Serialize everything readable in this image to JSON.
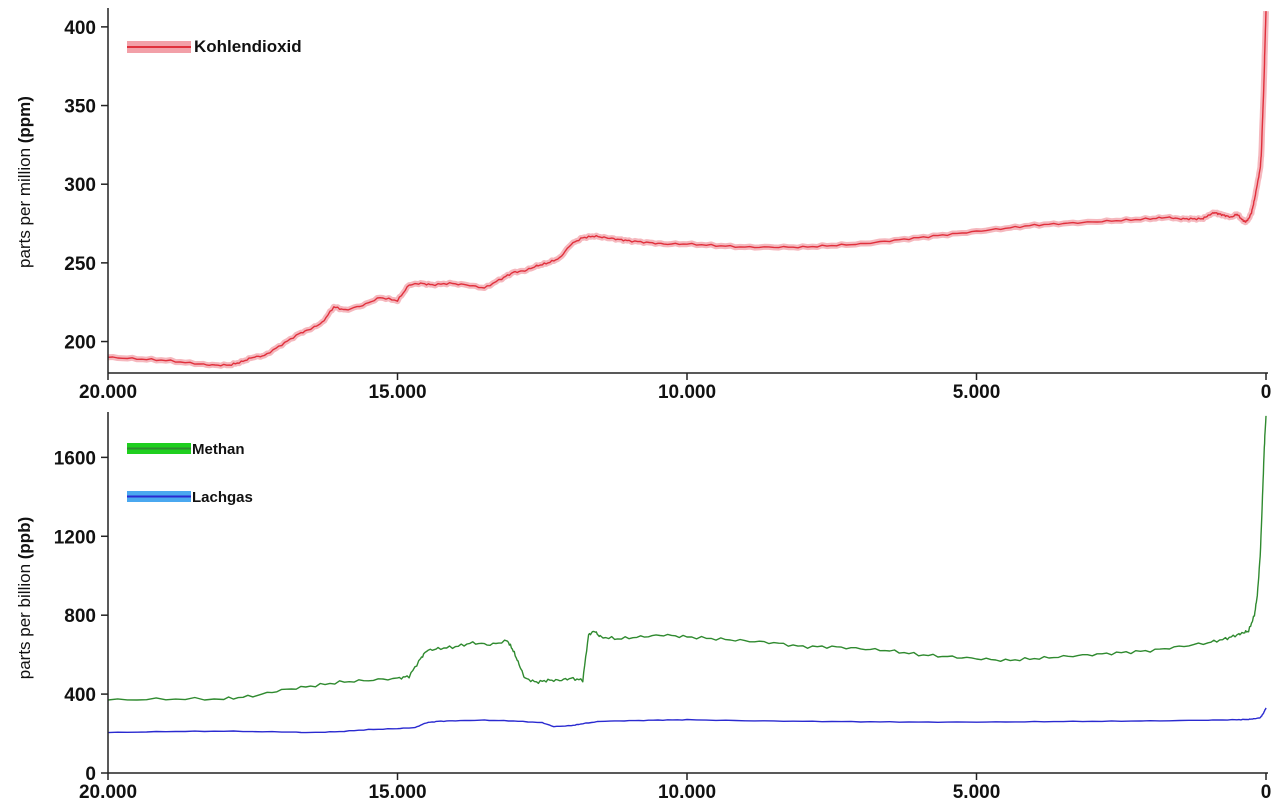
{
  "chart_data": [
    {
      "type": "line",
      "ylabel_main": "parts per million ",
      "ylabel_unit": "(ppm)",
      "x_ticks": [
        "20.000",
        "15.000",
        "10.000",
        "5.000",
        "0"
      ],
      "y_ticks": [
        "200",
        "250",
        "300",
        "350",
        "400"
      ],
      "xlim": [
        20000,
        0
      ],
      "ylim": [
        180,
        412
      ],
      "grid": false,
      "legend_position": "top-left",
      "series": [
        {
          "name": "Kohlendioxid",
          "color": "#e0303c",
          "band_color": "#f2a0a8",
          "x": [
            20000,
            19500,
            19000,
            18500,
            18200,
            17900,
            17700,
            17500,
            17300,
            17000,
            16700,
            16500,
            16300,
            16100,
            15900,
            15600,
            15300,
            15000,
            14800,
            14600,
            14400,
            14100,
            13800,
            13500,
            13200,
            13000,
            12800,
            12600,
            12400,
            12200,
            12000,
            11800,
            11600,
            11400,
            11200,
            11000,
            10700,
            10400,
            10000,
            9500,
            9000,
            8500,
            8000,
            7500,
            7000,
            6500,
            6000,
            5500,
            5000,
            4500,
            4000,
            3500,
            3000,
            2500,
            2000,
            1700,
            1500,
            1300,
            1100,
            1000,
            900,
            800,
            700,
            600,
            500,
            400,
            350,
            300,
            250,
            200,
            150,
            100,
            80,
            60,
            40,
            20,
            0
          ],
          "y": [
            190,
            189,
            188,
            186,
            185,
            185,
            187,
            190,
            191,
            198,
            205,
            208,
            212,
            222,
            220,
            223,
            228,
            226,
            236,
            237,
            236,
            237,
            236,
            234,
            240,
            244,
            245,
            248,
            250,
            253,
            262,
            266,
            267,
            266,
            265,
            264,
            263,
            262,
            262,
            261,
            260,
            260,
            260,
            261,
            262,
            264,
            266,
            268,
            270,
            272,
            274,
            275,
            276,
            277,
            278,
            279,
            278,
            278,
            278,
            280,
            282,
            281,
            280,
            279,
            281,
            277,
            276,
            278,
            282,
            290,
            300,
            310,
            320,
            340,
            360,
            385,
            410
          ]
        }
      ]
    },
    {
      "type": "line",
      "ylabel_main": "parts per billion ",
      "ylabel_unit": "(ppb)",
      "x_ticks": [
        "20.000",
        "15.000",
        "10.000",
        "5.000",
        "0"
      ],
      "y_ticks": [
        "0",
        "400",
        "800",
        "1200",
        "1600"
      ],
      "xlim": [
        20000,
        0
      ],
      "ylim": [
        0,
        1830
      ],
      "grid": false,
      "legend_position": "top-left",
      "series": [
        {
          "name": "Methan",
          "color": "#2f8a2f",
          "legend_color": "#1fcf1f",
          "x": [
            20000,
            19000,
            18000,
            17500,
            17000,
            16500,
            16000,
            15500,
            15000,
            14800,
            14600,
            14500,
            14300,
            14000,
            13700,
            13400,
            13100,
            13000,
            12900,
            12800,
            12600,
            12400,
            12200,
            12000,
            11800,
            11700,
            11600,
            11500,
            11200,
            10800,
            10400,
            10000,
            9500,
            9000,
            8500,
            8000,
            7500,
            7000,
            6500,
            6000,
            5500,
            5000,
            4500,
            4000,
            3500,
            3000,
            2500,
            2000,
            1500,
            1000,
            700,
            500,
            400,
            300,
            200,
            150,
            100,
            60,
            30,
            0
          ],
          "y": [
            370,
            375,
            375,
            390,
            420,
            440,
            460,
            470,
            480,
            490,
            580,
            620,
            630,
            640,
            660,
            650,
            670,
            620,
            550,
            480,
            460,
            470,
            470,
            480,
            470,
            700,
            720,
            690,
            680,
            690,
            700,
            690,
            680,
            670,
            660,
            640,
            640,
            630,
            620,
            600,
            590,
            580,
            570,
            580,
            590,
            600,
            610,
            620,
            640,
            660,
            680,
            700,
            710,
            720,
            800,
            900,
            1100,
            1400,
            1650,
            1810
          ]
        },
        {
          "name": "Lachgas",
          "color": "#2a2ad0",
          "legend_color": "#4aa8f0",
          "x": [
            20000,
            19000,
            18000,
            17000,
            16500,
            16000,
            15500,
            15000,
            14700,
            14500,
            14300,
            14000,
            13500,
            13000,
            12500,
            12300,
            12000,
            11800,
            11500,
            11000,
            10500,
            10000,
            9000,
            8000,
            7000,
            6000,
            5000,
            4000,
            3000,
            2000,
            1000,
            500,
            300,
            200,
            100,
            50,
            0
          ],
          "y": [
            205,
            210,
            212,
            208,
            205,
            210,
            220,
            225,
            230,
            255,
            262,
            265,
            268,
            264,
            255,
            235,
            240,
            250,
            262,
            265,
            268,
            270,
            265,
            262,
            260,
            258,
            258,
            260,
            262,
            264,
            268,
            270,
            272,
            275,
            280,
            300,
            330
          ]
        }
      ]
    }
  ]
}
